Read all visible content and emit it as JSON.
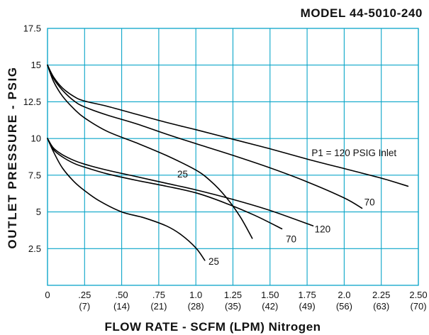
{
  "chart_data": {
    "type": "line",
    "title": "MODEL 44-5010-240",
    "xlabel": "FLOW RATE - SCFM (LPM) Nitrogen",
    "ylabel": "OUTLET PRESSURE - PSIG",
    "xlim": [
      0,
      2.5
    ],
    "ylim": [
      0,
      17.5
    ],
    "grid": true,
    "x_ticks": [
      {
        "value": 0,
        "label": "0"
      },
      {
        "value": 0.25,
        "label": ".25",
        "sub": "(7)"
      },
      {
        "value": 0.5,
        "label": ".50",
        "sub": "(14)"
      },
      {
        "value": 0.75,
        "label": ".75",
        "sub": "(21)"
      },
      {
        "value": 1.0,
        "label": "1.0",
        "sub": "(28)"
      },
      {
        "value": 1.25,
        "label": "1.25",
        "sub": "(35)"
      },
      {
        "value": 1.5,
        "label": "1.50",
        "sub": "(42)"
      },
      {
        "value": 1.75,
        "label": "1.75",
        "sub": "(49)"
      },
      {
        "value": 2.0,
        "label": "2.0",
        "sub": "(56)"
      },
      {
        "value": 2.25,
        "label": "2.25",
        "sub": "(63)"
      },
      {
        "value": 2.5,
        "label": "2.50",
        "sub": "(70)"
      }
    ],
    "y_ticks": [
      {
        "value": 2.5,
        "label": "2.5"
      },
      {
        "value": 5,
        "label": "5"
      },
      {
        "value": 7.5,
        "label": "7.5"
      },
      {
        "value": 10,
        "label": "10"
      },
      {
        "value": 12.5,
        "label": "12.5"
      },
      {
        "value": 15,
        "label": "15"
      },
      {
        "value": 17.5,
        "label": "17.5"
      }
    ],
    "series": [
      {
        "name": "P1 = 120 PSIG Inlet",
        "x": [
          0,
          0.04,
          0.1,
          0.18,
          0.25,
          0.4,
          0.6,
          0.8,
          1.0,
          1.25,
          1.5,
          1.75,
          2.0,
          2.25,
          2.43
        ],
        "y": [
          15,
          14.2,
          13.45,
          12.85,
          12.55,
          12.2,
          11.65,
          11.1,
          10.6,
          9.95,
          9.3,
          8.6,
          7.95,
          7.3,
          6.75
        ]
      },
      {
        "name": "70",
        "x": [
          0,
          0.04,
          0.1,
          0.18,
          0.25,
          0.4,
          0.6,
          0.8,
          1.0,
          1.25,
          1.5,
          1.75,
          2.0,
          2.12
        ],
        "y": [
          15,
          14.1,
          13.3,
          12.55,
          12.15,
          11.6,
          11.0,
          10.3,
          9.65,
          8.85,
          8.0,
          7.05,
          5.95,
          5.25
        ]
      },
      {
        "name": "25",
        "x": [
          0,
          0.04,
          0.1,
          0.18,
          0.25,
          0.4,
          0.6,
          0.8,
          1.0,
          1.1,
          1.2,
          1.3,
          1.38
        ],
        "y": [
          15,
          13.9,
          12.9,
          12.0,
          11.4,
          10.5,
          9.7,
          8.85,
          7.85,
          7.1,
          6.05,
          4.65,
          3.2
        ]
      },
      {
        "name": "120",
        "x": [
          0,
          0.04,
          0.1,
          0.18,
          0.25,
          0.4,
          0.6,
          0.8,
          1.0,
          1.25,
          1.5,
          1.79
        ],
        "y": [
          10,
          9.35,
          8.9,
          8.5,
          8.25,
          7.85,
          7.4,
          6.95,
          6.5,
          5.85,
          5.1,
          4.05
        ]
      },
      {
        "name": "70",
        "x": [
          0,
          0.04,
          0.1,
          0.18,
          0.25,
          0.4,
          0.6,
          0.8,
          1.0,
          1.2,
          1.4,
          1.58
        ],
        "y": [
          10,
          9.25,
          8.75,
          8.3,
          8.05,
          7.6,
          7.15,
          6.75,
          6.3,
          5.6,
          4.75,
          3.85
        ]
      },
      {
        "name": "25",
        "x": [
          0,
          0.04,
          0.1,
          0.18,
          0.25,
          0.35,
          0.5,
          0.65,
          0.8,
          0.9,
          1.0,
          1.06
        ],
        "y": [
          10,
          9.1,
          8.0,
          7.05,
          6.45,
          5.75,
          5.0,
          4.6,
          4.05,
          3.45,
          2.55,
          1.7
        ]
      }
    ]
  },
  "colors": {
    "grid": "#0aa5c8",
    "curve": "#000000"
  }
}
